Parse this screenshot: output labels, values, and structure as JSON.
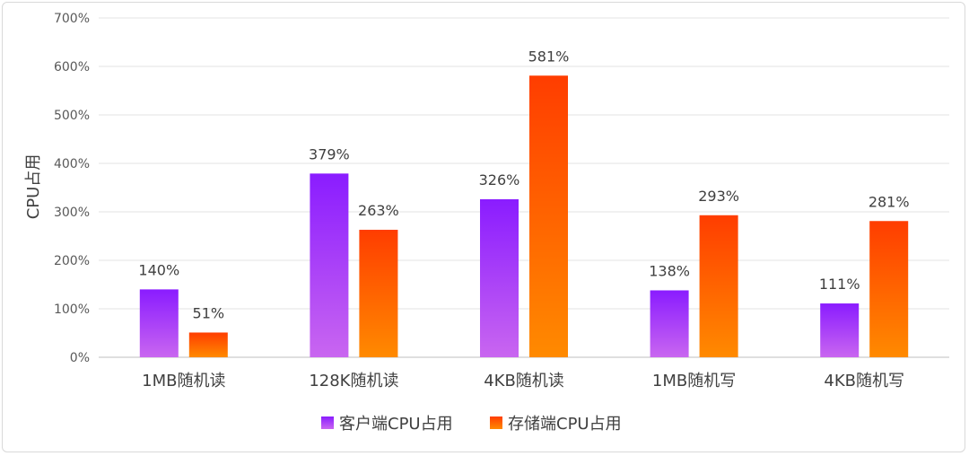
{
  "chart_data": {
    "type": "bar",
    "ylabel": "CPU占用",
    "xlabel": "",
    "ylim": [
      0,
      700
    ],
    "ytick_labels": [
      "0%",
      "100%",
      "200%",
      "300%",
      "400%",
      "500%",
      "600%",
      "700%"
    ],
    "grid": true,
    "legend_position": "bottom",
    "categories": [
      "1MB随机读",
      "128K随机读",
      "4KB随机读",
      "1MB随机写",
      "4KB随机写"
    ],
    "series": [
      {
        "name": "客户端CPU占用",
        "values": [
          140,
          379,
          326,
          138,
          111
        ],
        "labels": [
          "140%",
          "379%",
          "326%",
          "138%",
          "111%"
        ],
        "color_top": "#8a1cff",
        "color_bottom": "#c966f0"
      },
      {
        "name": "存储端CPU占用",
        "values": [
          51,
          263,
          581,
          293,
          281
        ],
        "labels": [
          "51%",
          "263%",
          "581%",
          "293%",
          "281%"
        ],
        "color_top": "#ff3d00",
        "color_bottom": "#ff8a00"
      }
    ]
  }
}
